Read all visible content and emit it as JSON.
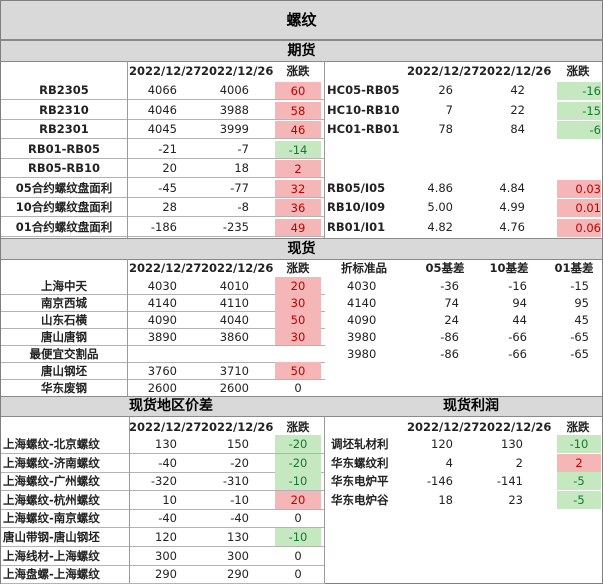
{
  "title": "螺纹",
  "sections": {
    "futures": "期货",
    "spot": "现货",
    "spot_diff": "现货地区价差",
    "spot_profit": "现货利润"
  },
  "headers": {
    "d1": "2022/12/27",
    "d2": "2022/12/26",
    "chg": "涨跌",
    "std": "折标准品",
    "b05": "05基差",
    "b10": "10基差",
    "b01": "01基差"
  },
  "futures_left": [
    {
      "name": "RB2305",
      "v1": "4066",
      "v2": "4006",
      "chg": "60",
      "sign": "pos"
    },
    {
      "name": "RB2310",
      "v1": "4046",
      "v2": "3988",
      "chg": "58",
      "sign": "pos"
    },
    {
      "name": "RB2301",
      "v1": "4045",
      "v2": "3999",
      "chg": "46",
      "sign": "pos"
    },
    {
      "name": "RB01-RB05",
      "v1": "-21",
      "v2": "-7",
      "chg": "-14",
      "sign": "neg"
    },
    {
      "name": "RB05-RB10",
      "v1": "20",
      "v2": "18",
      "chg": "2",
      "sign": "pos"
    },
    {
      "name": "05合约螺纹盘面利",
      "v1": "-45",
      "v2": "-77",
      "chg": "32",
      "sign": "pos"
    },
    {
      "name": "10合约螺纹盘面利",
      "v1": "28",
      "v2": "-8",
      "chg": "36",
      "sign": "pos"
    },
    {
      "name": "01合约螺纹盘面利",
      "v1": "-186",
      "v2": "-235",
      "chg": "49",
      "sign": "pos"
    }
  ],
  "futures_right": [
    {
      "name": "HC05-RB05",
      "v1": "26",
      "v2": "42",
      "chg": "-16",
      "sign": "neg"
    },
    {
      "name": "HC10-RB10",
      "v1": "7",
      "v2": "22",
      "chg": "-15",
      "sign": "neg"
    },
    {
      "name": "HC01-RB01",
      "v1": "78",
      "v2": "84",
      "chg": "-6",
      "sign": "neg"
    },
    {
      "name": "RB05/I05",
      "v1": "4.86",
      "v2": "4.84",
      "chg": "0.03",
      "sign": "pos"
    },
    {
      "name": "RB10/I09",
      "v1": "5.00",
      "v2": "4.99",
      "chg": "0.01",
      "sign": "pos"
    },
    {
      "name": "RB01/I01",
      "v1": "4.82",
      "v2": "4.76",
      "chg": "0.06",
      "sign": "pos"
    }
  ],
  "spot": [
    {
      "name": "上海中天",
      "v1": "4030",
      "v2": "4010",
      "chg": "20",
      "sign": "pos",
      "std": "4030",
      "b05": "-36",
      "b10": "-16",
      "b01": "-15"
    },
    {
      "name": "南京西城",
      "v1": "4140",
      "v2": "4110",
      "chg": "30",
      "sign": "pos",
      "std": "4140",
      "b05": "74",
      "b10": "94",
      "b01": "95"
    },
    {
      "name": "山东石横",
      "v1": "4090",
      "v2": "4040",
      "chg": "50",
      "sign": "pos",
      "std": "4090",
      "b05": "24",
      "b10": "44",
      "b01": "45"
    },
    {
      "name": "唐山唐钢",
      "v1": "3890",
      "v2": "3860",
      "chg": "30",
      "sign": "pos",
      "std": "3980",
      "b05": "-86",
      "b10": "-66",
      "b01": "-65"
    },
    {
      "name": "最便宜交割品",
      "v1": "",
      "v2": "",
      "chg": "",
      "sign": "",
      "std": "3980",
      "b05": "-86",
      "b10": "-66",
      "b01": "-65"
    },
    {
      "name": "唐山钢坯",
      "v1": "3760",
      "v2": "3710",
      "chg": "50",
      "sign": "pos",
      "std": "",
      "b05": "",
      "b10": "",
      "b01": ""
    },
    {
      "name": "华东废钢",
      "v1": "2600",
      "v2": "2600",
      "chg": "0",
      "sign": "",
      "std": "",
      "b05": "",
      "b10": "",
      "b01": ""
    }
  ],
  "diff": [
    {
      "name": "上海螺纹-北京螺纹",
      "v1": "130",
      "v2": "150",
      "chg": "-20",
      "sign": "neg"
    },
    {
      "name": "上海螺纹-济南螺纹",
      "v1": "-40",
      "v2": "-20",
      "chg": "-20",
      "sign": "neg"
    },
    {
      "name": "上海螺纹-广州螺纹",
      "v1": "-320",
      "v2": "-310",
      "chg": "-10",
      "sign": "neg"
    },
    {
      "name": "上海螺纹-杭州螺纹",
      "v1": "10",
      "v2": "-10",
      "chg": "20",
      "sign": "pos"
    },
    {
      "name": "上海螺纹-南京螺纹",
      "v1": "-40",
      "v2": "-40",
      "chg": "0",
      "sign": ""
    },
    {
      "name": "唐山带钢-唐山钢坯",
      "v1": "120",
      "v2": "130",
      "chg": "-10",
      "sign": "neg"
    },
    {
      "name": "上海线材-上海螺纹",
      "v1": "300",
      "v2": "300",
      "chg": "0",
      "sign": ""
    },
    {
      "name": "上海盘螺-上海螺纹",
      "v1": "290",
      "v2": "290",
      "chg": "0",
      "sign": ""
    }
  ],
  "profit": [
    {
      "name": "调坯轧材利",
      "v1": "120",
      "v2": "130",
      "chg": "-10",
      "sign": "neg"
    },
    {
      "name": "华东螺纹利",
      "v1": "4",
      "v2": "2",
      "chg": "2",
      "sign": "pos"
    },
    {
      "name": "华东电炉平",
      "v1": "-146",
      "v2": "-141",
      "chg": "-5",
      "sign": "neg"
    },
    {
      "name": "华东电炉谷",
      "v1": "18",
      "v2": "23",
      "chg": "-5",
      "sign": "neg"
    }
  ],
  "colors": {
    "up": "#f4b6b6",
    "down": "#c5e8c1",
    "header": "#d9d9d9"
  }
}
